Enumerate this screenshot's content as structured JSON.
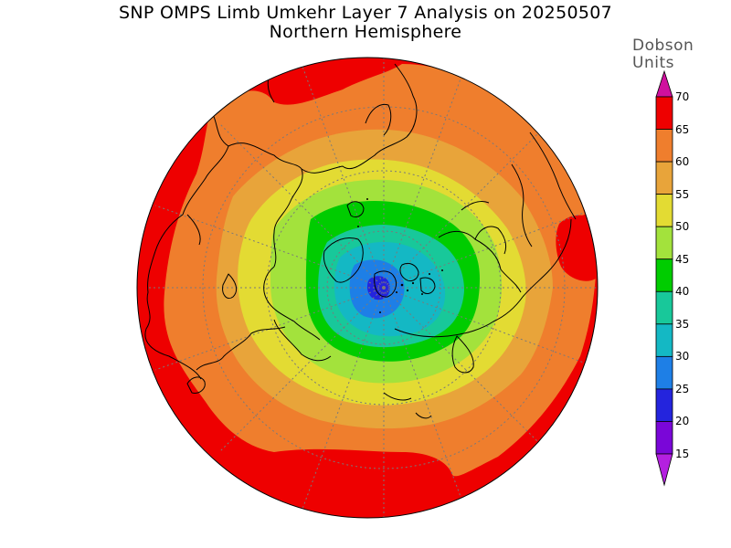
{
  "title": {
    "line1": "SNP OMPS Limb Umkehr Layer 7 Analysis on 20250507",
    "line2": "Northern Hemisphere"
  },
  "colorbar": {
    "units_line1": "Dobson",
    "units_line2": "Units",
    "ticks": [
      {
        "value": 70,
        "label": "70",
        "color": "#e0006e"
      },
      {
        "value": 65,
        "label": "65",
        "color": "#ee0000"
      },
      {
        "value": 60,
        "label": "60",
        "color": "#ef7e2d"
      },
      {
        "value": 55,
        "label": "55",
        "color": "#e8a43a"
      },
      {
        "value": 50,
        "label": "50",
        "color": "#e3db33"
      },
      {
        "value": 45,
        "label": "45",
        "color": "#a3e23c"
      },
      {
        "value": 40,
        "label": "40",
        "color": "#00cc00"
      },
      {
        "value": 35,
        "label": "35",
        "color": "#18c89a"
      },
      {
        "value": 30,
        "label": "30",
        "color": "#14b8c4"
      },
      {
        "value": 25,
        "label": "25",
        "color": "#1e7fe6"
      },
      {
        "value": 20,
        "label": "20",
        "color": "#2424dd"
      },
      {
        "value": 15,
        "label": "15",
        "color": "#7a06d8"
      }
    ],
    "top_arrow_color": "#d0109e",
    "bottom_arrow_color": "#b420e0"
  },
  "map": {
    "projection": "north-polar-stereographic",
    "hemisphere": "Northern",
    "variable": "ozone layer 7 column",
    "level_colors": {
      "65+": "#ee0000",
      "60-65": "#ef7e2d",
      "55-60": "#e8a43a",
      "50-55": "#e3db33",
      "45-50": "#a3e23c",
      "40-45": "#00cc00",
      "35-40": "#18c89a",
      "30-35": "#14b8c4",
      "25-30": "#1e7fe6",
      "20-25": "#2424dd"
    },
    "minimum_region": "near North Pole, below 25 DU",
    "grid": "dotted graticule"
  }
}
